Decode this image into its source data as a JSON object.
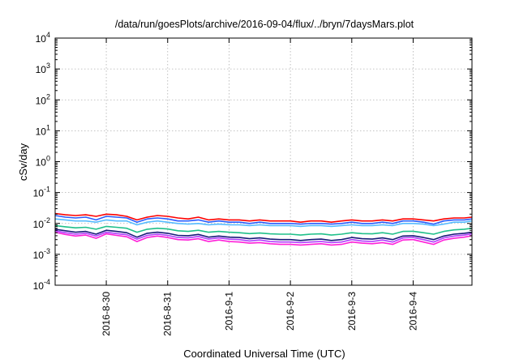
{
  "chart_data": {
    "type": "line",
    "title": "/data/run/goesPlots/archive/2016-09-04/flux/../bryn/7daysMars.plot",
    "xlabel": "Coordinated Universal Time (UTC)",
    "ylabel": "cSv/day",
    "yscale": "log",
    "ylim": [
      0.0001,
      10000
    ],
    "xlim": [
      "2016-08-29 04:00",
      "2016-09-04 23:00"
    ],
    "grid": true,
    "legend": "none",
    "x_ticks": [
      {
        "date": "2016-08-30",
        "label": "2016-8-30"
      },
      {
        "date": "2016-08-31",
        "label": "2016-8-31"
      },
      {
        "date": "2016-09-01",
        "label": "2016-9-1"
      },
      {
        "date": "2016-09-02",
        "label": "2016-9-2"
      },
      {
        "date": "2016-09-03",
        "label": "2016-9-3"
      },
      {
        "date": "2016-09-04",
        "label": "2016-9-4"
      }
    ],
    "y_ticks": [
      {
        "value": 0.0001,
        "base": "10",
        "exp": "-4"
      },
      {
        "value": 0.001,
        "base": "10",
        "exp": "-3"
      },
      {
        "value": 0.01,
        "base": "10",
        "exp": "-2"
      },
      {
        "value": 0.1,
        "base": "10",
        "exp": "-1"
      },
      {
        "value": 1,
        "base": "10",
        "exp": "0"
      },
      {
        "value": 10,
        "base": "10",
        "exp": "1"
      },
      {
        "value": 100,
        "base": "10",
        "exp": "2"
      },
      {
        "value": 1000,
        "base": "10",
        "exp": "3"
      },
      {
        "value": 10000,
        "base": "10",
        "exp": "4"
      }
    ],
    "x": [
      "2016-08-29 04:00",
      "2016-08-29 08:00",
      "2016-08-29 12:00",
      "2016-08-29 16:00",
      "2016-08-29 20:00",
      "2016-08-30 00:00",
      "2016-08-30 04:00",
      "2016-08-30 08:00",
      "2016-08-30 12:00",
      "2016-08-30 16:00",
      "2016-08-30 20:00",
      "2016-08-31 00:00",
      "2016-08-31 04:00",
      "2016-08-31 08:00",
      "2016-08-31 12:00",
      "2016-08-31 16:00",
      "2016-08-31 20:00",
      "2016-09-01 00:00",
      "2016-09-01 04:00",
      "2016-09-01 08:00",
      "2016-09-01 12:00",
      "2016-09-01 16:00",
      "2016-09-01 20:00",
      "2016-09-02 00:00",
      "2016-09-02 04:00",
      "2016-09-02 08:00",
      "2016-09-02 12:00",
      "2016-09-02 16:00",
      "2016-09-02 20:00",
      "2016-09-03 00:00",
      "2016-09-03 04:00",
      "2016-09-03 08:00",
      "2016-09-03 12:00",
      "2016-09-03 16:00",
      "2016-09-03 20:00",
      "2016-09-04 00:00",
      "2016-09-04 04:00",
      "2016-09-04 08:00",
      "2016-09-04 12:00",
      "2016-09-04 16:00",
      "2016-09-04 20:00",
      "2016-09-04 23:00"
    ],
    "series": [
      {
        "color": "#ff0000",
        "values": [
          0.021,
          0.019,
          0.018,
          0.019,
          0.017,
          0.02,
          0.019,
          0.017,
          0.013,
          0.016,
          0.018,
          0.017,
          0.015,
          0.014,
          0.016,
          0.013,
          0.014,
          0.013,
          0.013,
          0.012,
          0.013,
          0.012,
          0.012,
          0.012,
          0.011,
          0.012,
          0.012,
          0.011,
          0.012,
          0.013,
          0.012,
          0.012,
          0.013,
          0.012,
          0.014,
          0.014,
          0.013,
          0.012,
          0.014,
          0.015,
          0.015,
          0.016
        ]
      },
      {
        "color": "#2b5cff",
        "values": [
          0.018,
          0.016,
          0.015,
          0.016,
          0.013,
          0.017,
          0.016,
          0.015,
          0.011,
          0.014,
          0.015,
          0.014,
          0.012,
          0.012,
          0.013,
          0.011,
          0.012,
          0.011,
          0.011,
          0.01,
          0.011,
          0.01,
          0.01,
          0.01,
          0.0095,
          0.01,
          0.01,
          0.0095,
          0.01,
          0.011,
          0.01,
          0.01,
          0.011,
          0.01,
          0.012,
          0.012,
          0.011,
          0.0095,
          0.012,
          0.013,
          0.013,
          0.014
        ]
      },
      {
        "color": "#55bbff",
        "values": [
          0.014,
          0.013,
          0.012,
          0.012,
          0.011,
          0.013,
          0.012,
          0.012,
          0.009,
          0.011,
          0.012,
          0.011,
          0.01,
          0.0095,
          0.01,
          0.009,
          0.0095,
          0.009,
          0.009,
          0.0085,
          0.009,
          0.0085,
          0.0085,
          0.0085,
          0.008,
          0.0085,
          0.0085,
          0.008,
          0.0085,
          0.009,
          0.0085,
          0.0085,
          0.009,
          0.0085,
          0.01,
          0.01,
          0.0095,
          0.0085,
          0.0095,
          0.011,
          0.011,
          0.012
        ]
      },
      {
        "color": "#20c08a",
        "values": [
          0.0085,
          0.0078,
          0.0072,
          0.0075,
          0.0065,
          0.008,
          0.0075,
          0.007,
          0.0052,
          0.0065,
          0.007,
          0.0066,
          0.0058,
          0.0055,
          0.006,
          0.0052,
          0.0055,
          0.0052,
          0.005,
          0.0047,
          0.0049,
          0.0046,
          0.0045,
          0.0045,
          0.0042,
          0.0045,
          0.0046,
          0.0042,
          0.0045,
          0.005,
          0.0047,
          0.0046,
          0.005,
          0.0045,
          0.0055,
          0.0056,
          0.005,
          0.0045,
          0.0055,
          0.0062,
          0.0065,
          0.007
        ]
      },
      {
        "color": "#1a1a7a",
        "values": [
          0.0065,
          0.0058,
          0.0052,
          0.0055,
          0.0045,
          0.006,
          0.0055,
          0.005,
          0.0036,
          0.0048,
          0.0052,
          0.0048,
          0.0041,
          0.004,
          0.0044,
          0.0036,
          0.0039,
          0.0036,
          0.0035,
          0.0032,
          0.0034,
          0.0031,
          0.003,
          0.003,
          0.0028,
          0.003,
          0.0031,
          0.0028,
          0.003,
          0.0035,
          0.0032,
          0.0031,
          0.0034,
          0.003,
          0.0039,
          0.004,
          0.0035,
          0.003,
          0.0039,
          0.0045,
          0.0048,
          0.0052
        ]
      },
      {
        "color": "#b040ff",
        "values": [
          0.0058,
          0.005,
          0.0045,
          0.0048,
          0.0039,
          0.0052,
          0.0047,
          0.0043,
          0.0031,
          0.0041,
          0.0045,
          0.0041,
          0.0035,
          0.0034,
          0.0038,
          0.0031,
          0.0034,
          0.0031,
          0.003,
          0.0027,
          0.0029,
          0.0026,
          0.0025,
          0.0025,
          0.0024,
          0.0025,
          0.0026,
          0.0024,
          0.0025,
          0.003,
          0.0027,
          0.0026,
          0.0029,
          0.0025,
          0.0034,
          0.0035,
          0.003,
          0.0025,
          0.0034,
          0.0039,
          0.0042,
          0.0046
        ]
      },
      {
        "color": "#ff20d8",
        "values": [
          0.0052,
          0.0044,
          0.0039,
          0.0042,
          0.0033,
          0.0046,
          0.0041,
          0.0037,
          0.0026,
          0.0035,
          0.0039,
          0.0035,
          0.003,
          0.0029,
          0.0032,
          0.0026,
          0.0029,
          0.0026,
          0.0025,
          0.0023,
          0.0024,
          0.0022,
          0.0021,
          0.0021,
          0.002,
          0.0021,
          0.0022,
          0.002,
          0.0021,
          0.0025,
          0.0023,
          0.0022,
          0.0024,
          0.0021,
          0.0029,
          0.003,
          0.0025,
          0.0021,
          0.0029,
          0.0033,
          0.0036,
          0.004
        ]
      }
    ]
  }
}
